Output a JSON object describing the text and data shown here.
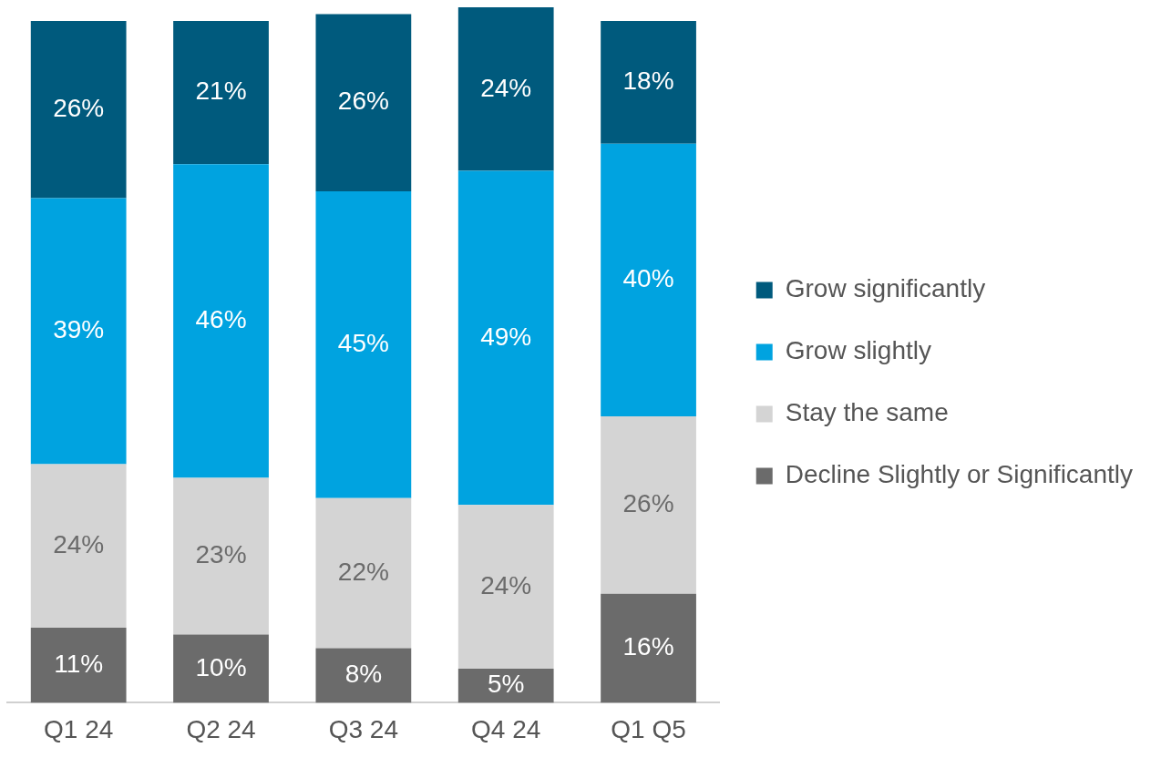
{
  "chart_data": {
    "type": "bar",
    "stacked": true,
    "categories": [
      "Q1 24",
      "Q2 24",
      "Q3 24",
      "Q4 24",
      "Q1 Q5"
    ],
    "series": [
      {
        "name": "Decline Slightly or Significantly",
        "color": "#6b6b6b",
        "values": [
          11,
          10,
          8,
          5,
          16
        ],
        "value_labels": [
          "11%",
          "10%",
          "8%",
          "5%",
          "16%"
        ]
      },
      {
        "name": "Stay the same",
        "color": "#d4d4d4",
        "values": [
          24,
          23,
          22,
          24,
          26
        ],
        "value_labels": [
          "24%",
          "23%",
          "22%",
          "24%",
          "26%"
        ]
      },
      {
        "name": "Grow slightly",
        "color": "#00a3e0",
        "values": [
          39,
          46,
          45,
          49,
          40
        ],
        "value_labels": [
          "39%",
          "46%",
          "45%",
          "49%",
          "40%"
        ]
      },
      {
        "name": "Grow significantly",
        "color": "#005a7d",
        "values": [
          26,
          21,
          26,
          24,
          18
        ],
        "value_labels": [
          "26%",
          "21%",
          "26%",
          "24%",
          "18%"
        ]
      }
    ],
    "tick_labels": "x",
    "grid": false,
    "legend": "right"
  }
}
